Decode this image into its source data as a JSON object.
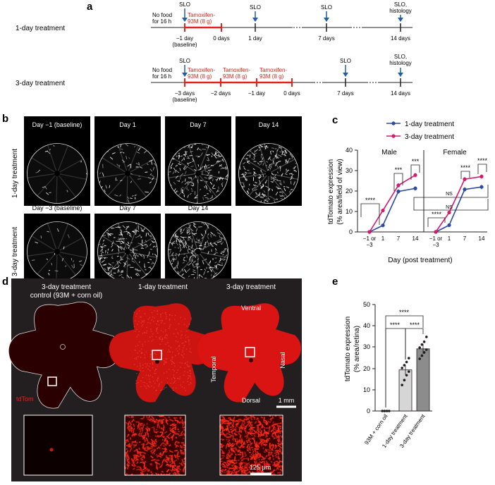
{
  "panel_a": {
    "letter": "a",
    "row1": {
      "label": "1-day treatment",
      "nofood": [
        "No food",
        "for 16 h"
      ],
      "slo_top": [
        "SLO",
        "SLO",
        "SLO"
      ],
      "slo_hist": [
        "SLO,",
        "histology"
      ],
      "tam": [
        "Tamoxifen-",
        "93M (8 g)"
      ],
      "ticks": [
        "−1 day",
        "(baseline)",
        "0 days",
        "1 day",
        "7 days",
        "14 days"
      ]
    },
    "row2": {
      "label": "3-day treatment",
      "nofood": [
        "No food",
        "for 16 h"
      ],
      "slo_top": [
        "SLO",
        "SLO"
      ],
      "slo_hist": [
        "SLO,",
        "histology"
      ],
      "tam": [
        "Tamoxifen-",
        "93M (8 g)",
        "Tamoxifen-",
        "93M (8 g)",
        "Tamoxifen-",
        "93M (8 g)"
      ],
      "ticks": [
        "−3 days",
        "(baseline)",
        "−2 days",
        "−1 day",
        "0 days",
        "7 days",
        "14 days"
      ]
    },
    "colors": {
      "red": "#e2231a",
      "blue": "#1f5fa8"
    }
  },
  "panel_b": {
    "letter": "b",
    "row1_label": "1-day treatment",
    "row2_label": "3-day treatment",
    "row1_titles": [
      "Day −1 (baseline)",
      "Day 1",
      "Day 7",
      "Day 14"
    ],
    "row2_titles": [
      "Day −3 (baseline)",
      "Day 7",
      "Day 14"
    ],
    "row1_intensity": [
      0.05,
      0.25,
      0.75,
      0.85
    ],
    "row2_intensity": [
      0.08,
      0.85,
      0.95
    ]
  },
  "panel_c": {
    "letter": "c",
    "legend": [
      "1-day treatment",
      "3-day treatment"
    ],
    "sex": [
      "Male",
      "Female"
    ],
    "ylabel": [
      "tdTomato expression",
      "(% area/field of view)"
    ],
    "xlabel": "Day (post treatment)",
    "yticks": [
      "0",
      "10",
      "20",
      "30",
      "40"
    ],
    "xticks": [
      "−1 or",
      "−3",
      "1",
      "7",
      "14"
    ],
    "sig": [
      "****",
      "***",
      "***",
      "****",
      "****",
      "NS",
      "NS",
      "****"
    ]
  },
  "panel_d": {
    "letter": "d",
    "titles": [
      "3-day treatment",
      "control (93M + corn oil)",
      "1-day treatment",
      "3-day treatment"
    ],
    "orient": [
      "Ventral",
      "Temporal",
      "Nasal",
      "Dorsal"
    ],
    "stain": "tdTom",
    "scale1": "1 mm",
    "scale2": "125 μm"
  },
  "panel_e": {
    "letter": "e",
    "ylabel": [
      "tdTomato expression",
      "(% area/retina)"
    ],
    "yticks": [
      "0",
      "10",
      "20",
      "30",
      "40",
      "50"
    ],
    "sig": [
      "****",
      "****",
      "****"
    ]
  },
  "chart_data": [
    {
      "type": "line",
      "x": [
        "−1 or −3",
        "1",
        "7",
        "14"
      ],
      "ylabel": "tdTomato expression (% area/field of view)",
      "xlabel": "Day (post treatment)",
      "ylim": [
        0,
        40
      ],
      "legend": "top-right",
      "groups": [
        {
          "label": "Male",
          "series": [
            {
              "name": "1-day treatment",
              "color": "#2b4aa0",
              "x": [
                -1,
                1,
                7,
                14
              ],
              "values": [
                0,
                3.2,
                19.8,
                21.3
              ]
            },
            {
              "name": "3-day treatment",
              "color": "#d6196b",
              "x": [
                -3,
                1,
                7,
                14
              ],
              "values": [
                0,
                10.5,
                22.8,
                27.8
              ]
            }
          ]
        },
        {
          "label": "Female",
          "series": [
            {
              "name": "1-day treatment",
              "color": "#2b4aa0",
              "x": [
                -1,
                1,
                7,
                14
              ],
              "values": [
                0,
                3.3,
                20.8,
                22.0
              ]
            },
            {
              "name": "3-day treatment",
              "color": "#d6196b",
              "x": [
                -3,
                1,
                7,
                14
              ],
              "values": [
                0,
                9.5,
                25.8,
                27.1
              ]
            }
          ]
        }
      ]
    },
    {
      "type": "bar",
      "categories": [
        "93M + corn oil",
        "1-day treatment",
        "3-day treatment"
      ],
      "values": [
        0,
        19.3,
        29.2
      ],
      "ylabel": "tdTomato expression (% area/retina)",
      "ylim": [
        0,
        50
      ],
      "bar_colors": [
        "#ffffff",
        "#d6d6d6",
        "#8c8c8c"
      ],
      "points": [
        [
          0,
          0,
          0,
          0
        ],
        [
          12.2,
          14.5,
          16.8,
          18.5,
          20.2,
          21.5,
          23.0,
          24.8
        ],
        [
          24.5,
          26.0,
          27.5,
          28.8,
          29.8,
          31.2,
          32.5,
          34.8
        ]
      ]
    }
  ]
}
